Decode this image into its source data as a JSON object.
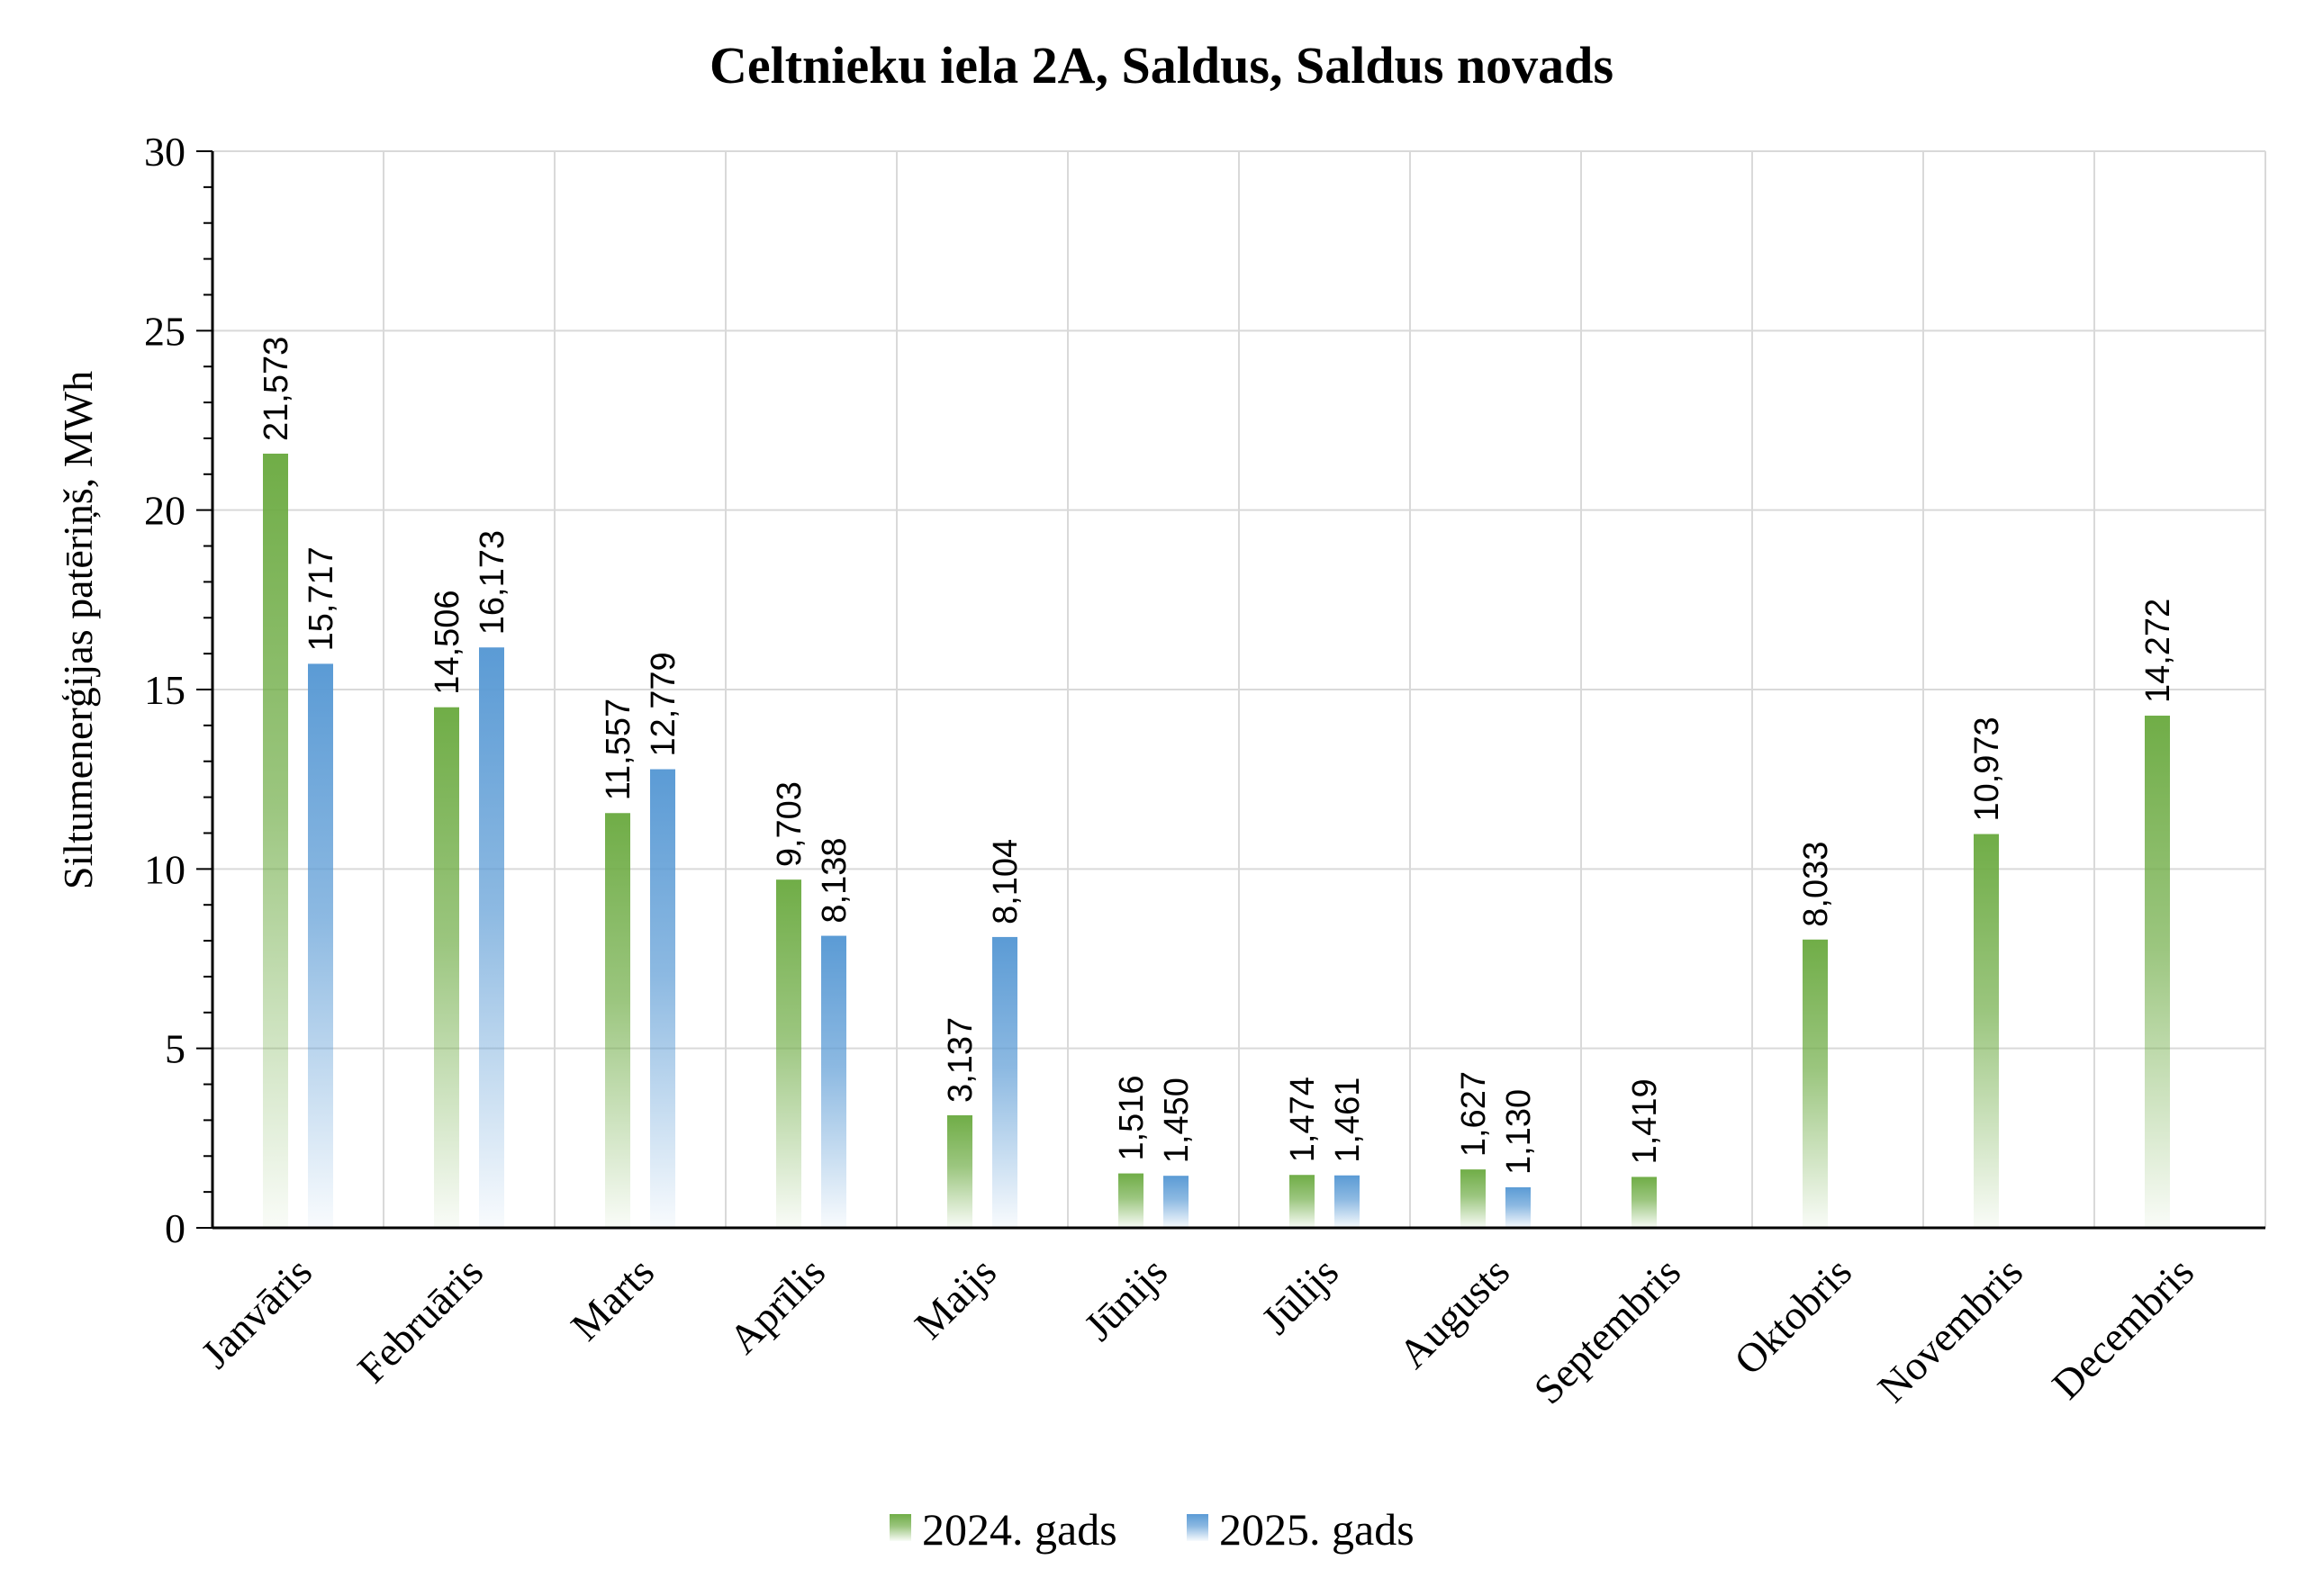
{
  "chart_data": {
    "type": "bar",
    "title": "Celtnieku iela 2A, Saldus, Saldus novads",
    "xlabel": "",
    "ylabel": "Siltumenerģijas patēriņš, MWh",
    "ylim": [
      0,
      30
    ],
    "yticks": [
      0,
      5,
      10,
      15,
      20,
      25,
      30
    ],
    "ytick_labels": [
      "0",
      "5",
      "10",
      "15",
      "20",
      "25",
      "30"
    ],
    "grid": true,
    "legend_position": "bottom",
    "categories": [
      "Janvāris",
      "Februāris",
      "Marts",
      "Aprīlis",
      "Maijs",
      "Jūnijs",
      "Jūlijs",
      "Augusts",
      "Septembris",
      "Oktobris",
      "Novembris",
      "Decembris"
    ],
    "series": [
      {
        "name": "2024. gads",
        "color": "#70ad47",
        "values": [
          21.573,
          14.506,
          11.557,
          9.703,
          3.137,
          1.516,
          1.474,
          1.627,
          1.419,
          8.033,
          10.973,
          14.272
        ],
        "labels": [
          "21,573",
          "14,506",
          "11,557",
          "9,703",
          "3,137",
          "1,516",
          "1,474",
          "1,627",
          "1,419",
          "8,033",
          "10,973",
          "14,272"
        ]
      },
      {
        "name": "2025. gads",
        "color": "#5b9bd5",
        "values": [
          15.717,
          16.173,
          12.779,
          8.138,
          8.104,
          1.45,
          1.461,
          1.13,
          null,
          null,
          null,
          null
        ],
        "labels": [
          "15,717",
          "16,173",
          "12,779",
          "8,138",
          "8,104",
          "1,450",
          "1,461",
          "1,130",
          null,
          null,
          null,
          null
        ]
      }
    ]
  }
}
